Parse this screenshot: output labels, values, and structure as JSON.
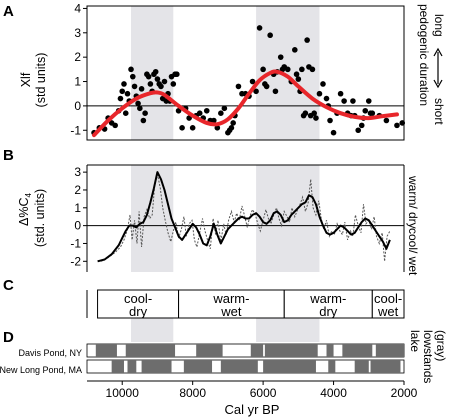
{
  "chart_data": [
    {
      "panel": "A",
      "type": "scatter",
      "ylabel_lines": [
        "Xlf",
        "(std units)"
      ],
      "yticks": [
        -1,
        0,
        1,
        2,
        3,
        4
      ],
      "ylim": [
        -1.4,
        4.1
      ],
      "xlim": [
        11000,
        2000
      ],
      "right_labels": {
        "main": "pedogenic duration",
        "top": "long",
        "bottom": "short"
      },
      "points": [
        [
          10800,
          -1.1
        ],
        [
          10650,
          -0.9
        ],
        [
          10500,
          -0.95
        ],
        [
          10400,
          -0.5
        ],
        [
          10300,
          -0.7
        ],
        [
          10200,
          -0.8
        ],
        [
          10100,
          -0.2
        ],
        [
          10050,
          0.3
        ],
        [
          10000,
          0.6
        ],
        [
          9950,
          0.9
        ],
        [
          9900,
          -0.3
        ],
        [
          9850,
          0.5
        ],
        [
          9800,
          0.2
        ],
        [
          9750,
          1.5
        ],
        [
          9700,
          1.2
        ],
        [
          9650,
          0.8
        ],
        [
          9600,
          0.4
        ],
        [
          9550,
          0.1
        ],
        [
          9500,
          -0.1
        ],
        [
          9450,
          0.7
        ],
        [
          9400,
          -0.6
        ],
        [
          9350,
          -0.3
        ],
        [
          9300,
          1.3
        ],
        [
          9250,
          1.2
        ],
        [
          9200,
          0.9
        ],
        [
          9150,
          0.6
        ],
        [
          9100,
          1.3
        ],
        [
          9050,
          1.4
        ],
        [
          9000,
          1.1
        ],
        [
          8950,
          0.9
        ],
        [
          8900,
          0.8
        ],
        [
          8850,
          0.3
        ],
        [
          8800,
          1.0
        ],
        [
          8750,
          0.2
        ],
        [
          8700,
          0.5
        ],
        [
          8650,
          0.2
        ],
        [
          8600,
          1.2
        ],
        [
          8550,
          0.9
        ],
        [
          8500,
          1.3
        ],
        [
          8450,
          1.3
        ],
        [
          8400,
          -0.2
        ],
        [
          8300,
          -0.9
        ],
        [
          8200,
          -0.1
        ],
        [
          8100,
          -0.5
        ],
        [
          8000,
          -0.9
        ],
        [
          7900,
          -0.4
        ],
        [
          7800,
          -0.3
        ],
        [
          7700,
          -0.5
        ],
        [
          7600,
          -0.2
        ],
        [
          7500,
          -0.6
        ],
        [
          7400,
          -0.6
        ],
        [
          7300,
          -0.9
        ],
        [
          7200,
          -0.3
        ],
        [
          7100,
          -0.1
        ],
        [
          7000,
          -1.1
        ],
        [
          6950,
          -1.0
        ],
        [
          6900,
          -0.9
        ],
        [
          6850,
          -0.7
        ],
        [
          6800,
          -0.4
        ],
        [
          6700,
          0.8
        ],
        [
          6600,
          0.5
        ],
        [
          6500,
          0.5
        ],
        [
          6400,
          0.4
        ],
        [
          6300,
          1.0
        ],
        [
          6200,
          0.6
        ],
        [
          6100,
          3.2
        ],
        [
          6000,
          1.5
        ],
        [
          5950,
          0.9
        ],
        [
          5900,
          0.8
        ],
        [
          5800,
          2.9
        ],
        [
          5700,
          1.3
        ],
        [
          5650,
          0.6
        ],
        [
          5600,
          1.4
        ],
        [
          5500,
          2.0
        ],
        [
          5450,
          1.5
        ],
        [
          5400,
          1.6
        ],
        [
          5300,
          1.5
        ],
        [
          5200,
          1.0
        ],
        [
          5100,
          2.3
        ],
        [
          5050,
          1.3
        ],
        [
          5000,
          1.1
        ],
        [
          4950,
          0.6
        ],
        [
          4900,
          1.5
        ],
        [
          4850,
          -0.4
        ],
        [
          4800,
          -0.3
        ],
        [
          4750,
          2.7
        ],
        [
          4700,
          1.6
        ],
        [
          4650,
          -0.4
        ],
        [
          4600,
          1.5
        ],
        [
          4550,
          -0.3
        ],
        [
          4500,
          -0.5
        ],
        [
          4400,
          0.5
        ],
        [
          4300,
          0.9
        ],
        [
          4200,
          0.3
        ],
        [
          4150,
          0.0
        ],
        [
          4100,
          -0.6
        ],
        [
          4000,
          -1.1
        ],
        [
          3900,
          -0.3
        ],
        [
          3800,
          0.5
        ],
        [
          3700,
          0.2
        ],
        [
          3600,
          -0.3
        ],
        [
          3500,
          -0.4
        ],
        [
          3450,
          0.2
        ],
        [
          3400,
          -0.4
        ],
        [
          3300,
          -1.0
        ],
        [
          3200,
          -0.8
        ],
        [
          3150,
          -0.5
        ],
        [
          3100,
          -0.2
        ],
        [
          3000,
          0.2
        ],
        [
          2950,
          -0.3
        ],
        [
          2900,
          -0.3
        ],
        [
          2700,
          -0.4
        ],
        [
          2500,
          -0.6
        ],
        [
          2200,
          -0.8
        ],
        [
          2050,
          -0.7
        ]
      ],
      "smooth_curve": [
        [
          10800,
          -1.2
        ],
        [
          10400,
          -0.6
        ],
        [
          10000,
          -0.1
        ],
        [
          9600,
          0.3
        ],
        [
          9200,
          0.52
        ],
        [
          9000,
          0.55
        ],
        [
          8800,
          0.45
        ],
        [
          8400,
          0.0
        ],
        [
          8000,
          -0.4
        ],
        [
          7600,
          -0.7
        ],
        [
          7300,
          -0.75
        ],
        [
          7000,
          -0.55
        ],
        [
          6700,
          -0.1
        ],
        [
          6400,
          0.5
        ],
        [
          6100,
          1.05
        ],
        [
          5800,
          1.35
        ],
        [
          5600,
          1.4
        ],
        [
          5300,
          1.2
        ],
        [
          5000,
          0.8
        ],
        [
          4600,
          0.3
        ],
        [
          4200,
          -0.05
        ],
        [
          3800,
          -0.3
        ],
        [
          3400,
          -0.45
        ],
        [
          3000,
          -0.5
        ],
        [
          2600,
          -0.42
        ],
        [
          2200,
          -0.35
        ]
      ]
    },
    {
      "panel": "B",
      "type": "line",
      "ylabel_lines": [
        "Δ%C",
        "4",
        "(std. units)"
      ],
      "yticks": [
        -2,
        -1,
        0,
        1,
        2,
        3
      ],
      "ylim": [
        -2.6,
        3.4
      ],
      "xlim": [
        11000,
        2000
      ],
      "right_labels": {
        "top": "warm/ dry",
        "bottom": "cool/ wet"
      },
      "series": [
        {
          "style": "solid",
          "x": [
            10700,
            10500,
            10300,
            10100,
            10000,
            9900,
            9800,
            9700,
            9600,
            9500,
            9400,
            9300,
            9200,
            9100,
            9000,
            8900,
            8800,
            8700,
            8600,
            8500,
            8400,
            8300,
            8200,
            8100,
            8000,
            7900,
            7800,
            7700,
            7600,
            7500,
            7400,
            7300,
            7200,
            7100,
            7000,
            6900,
            6800,
            6700,
            6600,
            6500,
            6400,
            6300,
            6200,
            6100,
            6000,
            5900,
            5800,
            5700,
            5600,
            5500,
            5400,
            5300,
            5200,
            5100,
            5000,
            4900,
            4800,
            4700,
            4600,
            4500,
            4400,
            4300,
            4200,
            4100,
            4000,
            3900,
            3800,
            3700,
            3600,
            3500,
            3400,
            3300,
            3200,
            3100,
            3000,
            2900,
            2800,
            2700,
            2600,
            2500,
            2400
          ],
          "y": [
            -2.0,
            -1.9,
            -1.6,
            -1.1,
            -0.7,
            -0.3,
            0.0,
            0.0,
            -0.1,
            0.1,
            0.2,
            0.6,
            1.3,
            2.1,
            3.0,
            2.6,
            2.0,
            1.2,
            0.4,
            -0.1,
            -0.6,
            -0.8,
            -0.5,
            -0.2,
            0.1,
            -0.1,
            -0.5,
            -1.0,
            -1.1,
            -0.6,
            0.1,
            -0.5,
            -1.0,
            -0.6,
            -0.2,
            0.0,
            0.2,
            0.4,
            0.5,
            0.4,
            0.4,
            0.6,
            0.7,
            0.5,
            0.2,
            0.1,
            0.3,
            0.7,
            0.8,
            0.6,
            0.2,
            0.3,
            0.6,
            0.8,
            1.0,
            1.2,
            1.3,
            1.7,
            1.6,
            1.2,
            0.5,
            0.0,
            -0.4,
            -0.5,
            -0.4,
            -0.2,
            0.0,
            -0.1,
            -0.3,
            -0.5,
            -0.4,
            -0.1,
            0.2,
            0.4,
            0.3,
            0.0,
            -0.3,
            -0.6,
            -0.9,
            -1.3,
            -0.8
          ]
        },
        {
          "style": "dotted",
          "x": [
            10600,
            10400,
            10200,
            10050,
            9950,
            9850,
            9780,
            9720,
            9650,
            9580,
            9520,
            9450,
            9380,
            9300,
            9220,
            9150,
            9080,
            9000,
            8920,
            8850,
            8780,
            8700,
            8620,
            8550,
            8480,
            8400,
            8320,
            8250,
            8180,
            8100,
            8020,
            7950,
            7880,
            7800,
            7720,
            7650,
            7580,
            7500,
            7420,
            7350,
            7280,
            7200,
            7120,
            7050,
            6980,
            6900,
            6820,
            6750,
            6680,
            6600,
            6520,
            6450,
            6380,
            6300,
            6220,
            6150,
            6080,
            6000,
            5920,
            5850,
            5780,
            5700,
            5620,
            5550,
            5480,
            5400,
            5320,
            5250,
            5180,
            5100,
            5020,
            4950,
            4880,
            4800,
            4720,
            4650,
            4580,
            4500,
            4420,
            4350,
            4280,
            4200,
            4120,
            4050,
            3980,
            3900,
            3820,
            3750,
            3680,
            3600,
            3520,
            3450,
            3380,
            3300,
            3220,
            3150,
            3080,
            3000,
            2920,
            2850,
            2780,
            2700,
            2620,
            2550,
            2480,
            2400
          ],
          "y": [
            -2.0,
            -1.8,
            -1.5,
            -1.2,
            -0.8,
            -0.2,
            0.6,
            -0.8,
            0.3,
            -1.0,
            0.8,
            -1.2,
            0.5,
            0.9,
            0.4,
            0.6,
            2.2,
            2.9,
            2.1,
            1.0,
            0.3,
            -0.4,
            -0.9,
            -0.3,
            0.2,
            -0.7,
            -0.2,
            0.5,
            -0.6,
            0.1,
            0.3,
            -0.8,
            -1.2,
            -0.4,
            0.4,
            -0.3,
            -0.8,
            -1.3,
            0.4,
            -0.5,
            0.3,
            -0.9,
            0.1,
            -0.5,
            0.3,
            0.8,
            0.2,
            0.7,
            0.3,
            1.1,
            0.5,
            -0.1,
            0.5,
            0.9,
            0.6,
            0.1,
            -0.3,
            0.3,
            0.9,
            0.4,
            0.1,
            0.6,
            1.0,
            0.4,
            0.0,
            0.8,
            0.5,
            0.2,
            1.0,
            0.5,
            0.9,
            1.2,
            1.6,
            0.8,
            1.3,
            2.6,
            1.0,
            0.6,
            1.4,
            0.4,
            -0.2,
            0.3,
            -0.6,
            -0.3,
            -0.5,
            0.1,
            -0.3,
            -0.5,
            0.2,
            -0.8,
            -0.3,
            -0.6,
            0.6,
            0.0,
            -0.4,
            1.2,
            0.1,
            0.3,
            -0.2,
            0.5,
            -0.6,
            -1.0,
            -0.4,
            -2.0,
            -0.6,
            -0.3
          ]
        }
      ]
    },
    {
      "panel": "C",
      "type": "table",
      "intervals": [
        {
          "label_lines": [
            "cool-",
            "dry"
          ],
          "from": 10700,
          "to": 8400
        },
        {
          "label_lines": [
            "warm-",
            "wet"
          ],
          "from": 8400,
          "to": 5400
        },
        {
          "label_lines": [
            "warm-",
            "dry"
          ],
          "from": 5400,
          "to": 2900
        },
        {
          "label_lines": [
            "cool-",
            "wet"
          ],
          "from": 2900,
          "to": 2000
        }
      ]
    },
    {
      "panel": "D",
      "type": "bar",
      "right_label_lines": [
        "lake",
        "lowstands",
        "(gray)"
      ],
      "xlabel": "Cal yr BP",
      "xticks": [
        10000,
        8000,
        6000,
        4000,
        2000
      ],
      "xlim": [
        11000,
        2000
      ],
      "records": [
        {
          "name": "Davis Pond, NY",
          "lowstands": [
            [
              10750,
              10150
            ],
            [
              9900,
              8500
            ],
            [
              7900,
              7150
            ],
            [
              6350,
              6000
            ],
            [
              5950,
              4450
            ],
            [
              4200,
              4000
            ],
            [
              3750,
              2900
            ],
            [
              2800,
              2000
            ]
          ]
        },
        {
          "name": "New Long Pond, MA",
          "lowstands": [
            [
              10300,
              9950
            ],
            [
              9850,
              9600
            ],
            [
              9450,
              8600
            ],
            [
              8250,
              7450
            ],
            [
              7200,
              6150
            ],
            [
              6000,
              4500
            ],
            [
              4150,
              3950
            ],
            [
              3400,
              3000
            ],
            [
              2950,
              2100
            ]
          ]
        }
      ]
    }
  ],
  "shading_intervals": [
    [
      9750,
      8550
    ],
    [
      6200,
      4400
    ]
  ],
  "colors": {
    "shade": "#e4e4e8",
    "curve_a": "#e8262b",
    "points": "#000000",
    "lowstand": "#6d6d6d"
  }
}
